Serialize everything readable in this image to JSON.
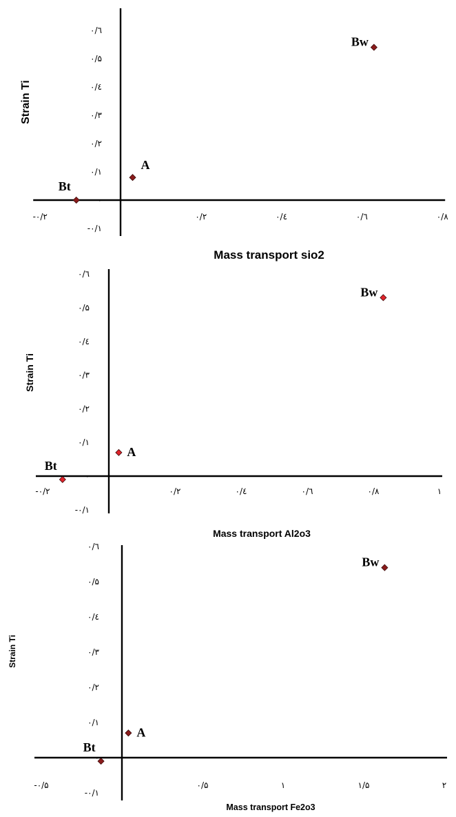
{
  "chart_data": [
    {
      "type": "scatter",
      "xlabel": "Mass transport sio2",
      "ylabel": "Strain Ti",
      "xlim": [
        -0.2,
        0.8
      ],
      "ylim": [
        -0.1,
        0.6
      ],
      "x_ticks": [
        {
          "value": -0.2,
          "label": "-۰/۲"
        },
        {
          "value": 0,
          "label": "۰"
        },
        {
          "value": 0.2,
          "label": "۰/۲"
        },
        {
          "value": 0.4,
          "label": "۰/٤"
        },
        {
          "value": 0.6,
          "label": "۰/٦"
        },
        {
          "value": 0.8,
          "label": "۰/۸"
        }
      ],
      "y_ticks": [
        {
          "value": -0.1,
          "label": "-۰/۱"
        },
        {
          "value": 0,
          "label": "۰"
        },
        {
          "value": 0.1,
          "label": "۰/۱"
        },
        {
          "value": 0.2,
          "label": "۰/۲"
        },
        {
          "value": 0.3,
          "label": "۰/۳"
        },
        {
          "value": 0.4,
          "label": "۰/٤"
        },
        {
          "value": 0.5,
          "label": "۰/۵"
        },
        {
          "value": 0.6,
          "label": "۰/٦"
        }
      ],
      "points": [
        {
          "label": "Bt",
          "x": -0.11,
          "y": 0.0
        },
        {
          "label": "A",
          "x": 0.03,
          "y": 0.08
        },
        {
          "label": "Bw",
          "x": 0.63,
          "y": 0.54
        }
      ],
      "marker_color": "#8b1c1c",
      "grid": false
    },
    {
      "type": "scatter",
      "xlabel": "Mass transport Al2o3",
      "ylabel": "Strain Ti",
      "xlim": [
        -0.2,
        1.0
      ],
      "ylim": [
        -0.1,
        0.6
      ],
      "x_ticks": [
        {
          "value": -0.2,
          "label": "-۰/۲"
        },
        {
          "value": 0,
          "label": "۰"
        },
        {
          "value": 0.2,
          "label": "۰/۲"
        },
        {
          "value": 0.4,
          "label": "۰/٤"
        },
        {
          "value": 0.6,
          "label": "۰/٦"
        },
        {
          "value": 0.8,
          "label": "۰/۸"
        },
        {
          "value": 1.0,
          "label": "۱"
        }
      ],
      "y_ticks": [
        {
          "value": -0.1,
          "label": "-۰/۱"
        },
        {
          "value": 0,
          "label": "۰"
        },
        {
          "value": 0.1,
          "label": "۰/۱"
        },
        {
          "value": 0.2,
          "label": "۰/۲"
        },
        {
          "value": 0.3,
          "label": "۰/۳"
        },
        {
          "value": 0.4,
          "label": "۰/٤"
        },
        {
          "value": 0.5,
          "label": "۰/۵"
        },
        {
          "value": 0.6,
          "label": "۰/٦"
        }
      ],
      "points": [
        {
          "label": "Bt",
          "x": -0.14,
          "y": -0.01
        },
        {
          "label": "A",
          "x": 0.03,
          "y": 0.07
        },
        {
          "label": "Bw",
          "x": 0.83,
          "y": 0.53
        }
      ],
      "marker_color": "#e0242b",
      "grid": false
    },
    {
      "type": "scatter",
      "xlabel": "Mass transport Fe2o3",
      "ylabel": "Strain Ti",
      "xlim": [
        -0.5,
        2.0
      ],
      "ylim": [
        -0.1,
        0.6
      ],
      "x_ticks": [
        {
          "value": -0.5,
          "label": "-۰/۵"
        },
        {
          "value": 0,
          "label": "۰"
        },
        {
          "value": 0.5,
          "label": "۰/۵"
        },
        {
          "value": 1.0,
          "label": "۱"
        },
        {
          "value": 1.5,
          "label": "۱/۵"
        },
        {
          "value": 2.0,
          "label": "۲"
        }
      ],
      "y_ticks": [
        {
          "value": -0.1,
          "label": "-۰/۱"
        },
        {
          "value": 0,
          "label": "۰"
        },
        {
          "value": 0.1,
          "label": "۰/۱"
        },
        {
          "value": 0.2,
          "label": "۰/۲"
        },
        {
          "value": 0.3,
          "label": "۰/۳"
        },
        {
          "value": 0.4,
          "label": "۰/٤"
        },
        {
          "value": 0.5,
          "label": "۰/۵"
        },
        {
          "value": 0.6,
          "label": "۰/٦"
        }
      ],
      "points": [
        {
          "label": "Bt",
          "x": -0.13,
          "y": -0.01
        },
        {
          "label": "A",
          "x": 0.04,
          "y": 0.07
        },
        {
          "label": "Bw",
          "x": 1.63,
          "y": 0.54
        }
      ],
      "marker_color": "#8b1c1c",
      "grid": false
    }
  ]
}
